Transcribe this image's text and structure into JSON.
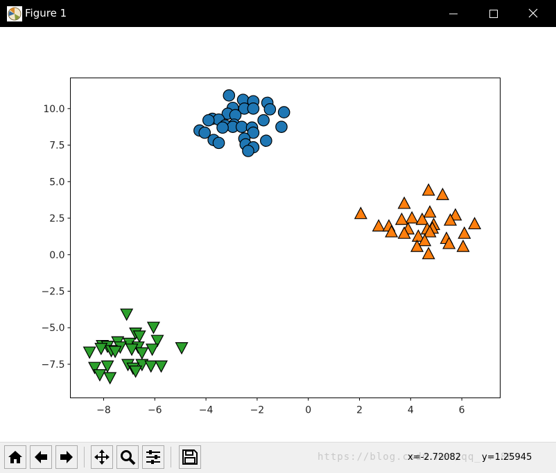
{
  "window": {
    "title": "Figure 1",
    "icons": {
      "app": "matplotlib-icon",
      "minimize": "minimize-icon",
      "maximize": "maximize-icon",
      "close": "close-icon"
    }
  },
  "toolbar": {
    "buttons": [
      "home-icon",
      "back-arrow-icon",
      "forward-arrow-icon",
      "pan-icon",
      "zoom-magnifier-icon",
      "subplots-sliders-icon",
      "save-disk-icon"
    ],
    "coord_x": "x=-2.72082",
    "coord_y": "y=1.25945",
    "watermark": "https://blog.csdn.net/qq_...86"
  },
  "chart_data": {
    "type": "scatter",
    "title": "",
    "xlabel": "",
    "ylabel": "",
    "xlim": [
      -9.3,
      7.5
    ],
    "ylim": [
      -9.8,
      12.1
    ],
    "xticks": [
      -8,
      -6,
      -4,
      -2,
      0,
      2,
      4,
      6
    ],
    "yticks": [
      -7.5,
      -5.0,
      -2.5,
      0.0,
      2.5,
      5.0,
      7.5,
      10.0
    ],
    "xtick_labels": [
      "−8",
      "−6",
      "−4",
      "−2",
      "0",
      "2",
      "4",
      "6"
    ],
    "ytick_labels": [
      "−7.5",
      "−5.0",
      "−2.5",
      "0.0",
      "2.5",
      "5.0",
      "7.5",
      "10.0"
    ],
    "grid": false,
    "legend": "none",
    "series": [
      {
        "marker": "circle",
        "color": "#1f77b4",
        "points": [
          [
            -3.1,
            10.9
          ],
          [
            -2.55,
            10.6
          ],
          [
            -2.15,
            10.5
          ],
          [
            -1.6,
            10.4
          ],
          [
            -2.95,
            10.05
          ],
          [
            -2.5,
            10.0
          ],
          [
            -2.15,
            10.0
          ],
          [
            -1.5,
            9.95
          ],
          [
            -0.95,
            9.75
          ],
          [
            -3.15,
            9.65
          ],
          [
            -2.85,
            9.55
          ],
          [
            -3.75,
            9.3
          ],
          [
            -3.5,
            9.25
          ],
          [
            -3.9,
            9.2
          ],
          [
            -1.75,
            9.2
          ],
          [
            -2.9,
            8.9
          ],
          [
            -3.25,
            8.85
          ],
          [
            -2.95,
            8.75
          ],
          [
            -2.6,
            8.75
          ],
          [
            -2.2,
            8.7
          ],
          [
            -3.35,
            8.7
          ],
          [
            -1.05,
            8.75
          ],
          [
            -4.25,
            8.5
          ],
          [
            -4.05,
            8.35
          ],
          [
            -2.15,
            8.35
          ],
          [
            -2.5,
            7.95
          ],
          [
            -3.7,
            7.85
          ],
          [
            -1.65,
            7.8
          ],
          [
            -3.5,
            7.65
          ],
          [
            -2.45,
            7.55
          ],
          [
            -2.15,
            7.35
          ],
          [
            -2.35,
            7.1
          ]
        ]
      },
      {
        "marker": "triangle-up",
        "color": "#ff7f0e",
        "points": [
          [
            4.7,
            4.4
          ],
          [
            5.25,
            4.1
          ],
          [
            3.75,
            3.5
          ],
          [
            2.05,
            2.8
          ],
          [
            4.75,
            2.9
          ],
          [
            5.75,
            2.7
          ],
          [
            4.05,
            2.5
          ],
          [
            3.65,
            2.4
          ],
          [
            4.45,
            2.4
          ],
          [
            5.55,
            2.35
          ],
          [
            6.5,
            2.1
          ],
          [
            2.75,
            1.95
          ],
          [
            3.15,
            1.95
          ],
          [
            4.9,
            2.05
          ],
          [
            4.85,
            1.8
          ],
          [
            3.9,
            1.75
          ],
          [
            4.65,
            1.75
          ],
          [
            3.25,
            1.55
          ],
          [
            4.75,
            1.55
          ],
          [
            3.75,
            1.45
          ],
          [
            6.1,
            1.45
          ],
          [
            4.3,
            1.25
          ],
          [
            5.4,
            1.1
          ],
          [
            4.55,
            0.95
          ],
          [
            5.5,
            0.75
          ],
          [
            4.25,
            0.55
          ],
          [
            6.05,
            0.55
          ],
          [
            4.7,
            0.05
          ]
        ]
      },
      {
        "marker": "triangle-down",
        "color": "#2ca02c",
        "points": [
          [
            -7.1,
            -4.05
          ],
          [
            -6.05,
            -4.95
          ],
          [
            -6.75,
            -5.35
          ],
          [
            -6.6,
            -5.55
          ],
          [
            -5.9,
            -5.85
          ],
          [
            -7.45,
            -5.95
          ],
          [
            -7.0,
            -6.05
          ],
          [
            -8.05,
            -6.2
          ],
          [
            -7.85,
            -6.25
          ],
          [
            -7.35,
            -6.3
          ],
          [
            -6.65,
            -6.3
          ],
          [
            -4.95,
            -6.35
          ],
          [
            -8.1,
            -6.4
          ],
          [
            -6.9,
            -6.45
          ],
          [
            -6.1,
            -6.45
          ],
          [
            -7.7,
            -6.55
          ],
          [
            -7.55,
            -6.6
          ],
          [
            -8.55,
            -6.65
          ],
          [
            -6.5,
            -6.7
          ],
          [
            -7.05,
            -7.5
          ],
          [
            -6.5,
            -7.5
          ],
          [
            -7.85,
            -7.6
          ],
          [
            -6.15,
            -7.6
          ],
          [
            -5.75,
            -7.6
          ],
          [
            -8.35,
            -7.7
          ],
          [
            -6.85,
            -7.75
          ],
          [
            -6.75,
            -7.95
          ],
          [
            -8.15,
            -8.2
          ],
          [
            -7.75,
            -8.4
          ]
        ]
      }
    ]
  }
}
